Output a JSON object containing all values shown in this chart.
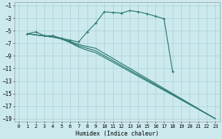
{
  "xlabel": "Humidex (Indice chaleur)",
  "bg_color": "#cce9ee",
  "grid_color": "#aad4d9",
  "line_color": "#2d7b72",
  "xlim": [
    -0.5,
    23.5
  ],
  "ylim": [
    -19.5,
    -0.5
  ],
  "xticks": [
    0,
    1,
    2,
    3,
    4,
    5,
    6,
    7,
    8,
    9,
    10,
    11,
    12,
    13,
    14,
    15,
    16,
    17,
    18,
    19,
    20,
    21,
    22,
    23
  ],
  "yticks": [
    -1,
    -3,
    -5,
    -7,
    -9,
    -11,
    -13,
    -15,
    -17,
    -19
  ],
  "curve": {
    "x": [
      1,
      2,
      3,
      4,
      5,
      6,
      7,
      8,
      9,
      10,
      11,
      12,
      13,
      14,
      15,
      16,
      17,
      18
    ],
    "y": [
      -5.5,
      -5.2,
      -5.8,
      -5.8,
      -6.2,
      -6.5,
      -6.8,
      -5.2,
      -3.8,
      -2.0,
      -2.1,
      -2.2,
      -1.8,
      -2.0,
      -2.3,
      -2.7,
      -3.1,
      -11.5
    ]
  },
  "line1": {
    "x": [
      1,
      4,
      5,
      6,
      7,
      8,
      9,
      23
    ],
    "y": [
      -5.5,
      -6.0,
      -6.3,
      -6.7,
      -7.2,
      -7.5,
      -7.8,
      -19.0
    ]
  },
  "line2": {
    "x": [
      1,
      4,
      5,
      6,
      7,
      8,
      9,
      23
    ],
    "y": [
      -5.5,
      -6.0,
      -6.3,
      -6.8,
      -7.4,
      -7.8,
      -8.2,
      -19.0
    ]
  },
  "line3": {
    "x": [
      1,
      4,
      5,
      6,
      7,
      8,
      9,
      23
    ],
    "y": [
      -5.5,
      -6.0,
      -6.3,
      -6.9,
      -7.6,
      -8.1,
      -8.5,
      -19.0
    ]
  }
}
